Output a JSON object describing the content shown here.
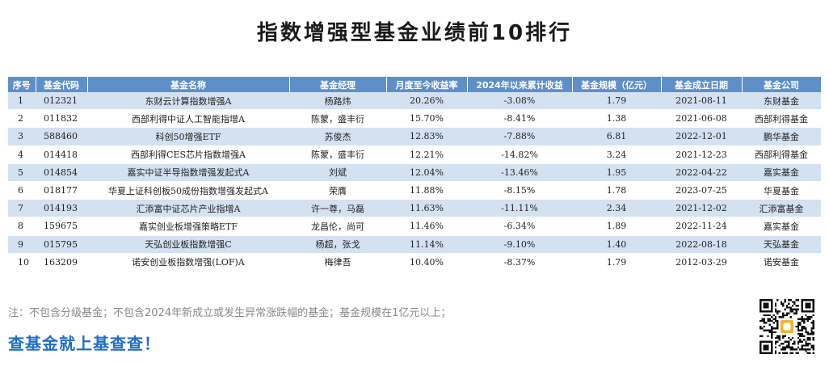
{
  "title": "指数增强型基金业绩前10排行",
  "table": {
    "headers": [
      "序号",
      "基金代码",
      "基金名称",
      "基金经理",
      "月度至今收益率",
      "2024年以来累计收益",
      "基金规模（亿元）",
      "基金成立日期",
      "基金公司"
    ],
    "rows": [
      [
        "1",
        "012321",
        "东财云计算指数增强A",
        "杨路炜",
        "20.26%",
        "-3.08%",
        "1.79",
        "2021-08-11",
        "东财基金"
      ],
      [
        "2",
        "011832",
        "西部利得中证人工智能指增A",
        "陈蒙，盛丰衍",
        "15.70%",
        "-8.41%",
        "1.38",
        "2021-06-08",
        "西部利得基金"
      ],
      [
        "3",
        "588460",
        "科创50增强ETF",
        "苏俊杰",
        "12.83%",
        "-7.88%",
        "6.81",
        "2022-12-01",
        "鹏华基金"
      ],
      [
        "4",
        "014418",
        "西部利得CES芯片指数增强A",
        "陈蒙，盛丰衍",
        "12.21%",
        "-14.82%",
        "3.24",
        "2021-12-23",
        "西部利得基金"
      ],
      [
        "5",
        "014854",
        "嘉实中证半导指数增强发起式A",
        "刘斌",
        "12.04%",
        "-13.46%",
        "1.95",
        "2022-04-22",
        "嘉实基金"
      ],
      [
        "6",
        "018177",
        "华夏上证科创板50成份指数增强发起式A",
        "荣膺",
        "11.88%",
        "-8.15%",
        "1.78",
        "2023-07-25",
        "华夏基金"
      ],
      [
        "7",
        "014193",
        "汇添富中证芯片产业指增A",
        "许一尊，马磊",
        "11.63%",
        "-11.11%",
        "2.34",
        "2021-12-02",
        "汇添富基金"
      ],
      [
        "8",
        "159675",
        "嘉实创业板增强策略ETF",
        "龙昌伦，尚可",
        "11.46%",
        "-6.34%",
        "1.89",
        "2022-11-24",
        "嘉实基金"
      ],
      [
        "9",
        "015795",
        "天弘创业板指数增强C",
        "杨超，张戈",
        "11.14%",
        "-9.10%",
        "1.40",
        "2022-08-18",
        "天弘基金"
      ],
      [
        "10",
        "163209",
        "诺安创业板指数增强(LOF)A",
        "梅律吾",
        "10.40%",
        "-8.37%",
        "1.79",
        "2012-03-29",
        "诺安基金"
      ]
    ]
  },
  "footer": {
    "note": "注：不包含分级基金；不包含2024年新成立或发生异常涨跌幅的基金；基金规模在1亿元以上；",
    "slogan": "查基金就上基查查！"
  },
  "colors": {
    "header_bg": "#5f8fc9",
    "row_alt_bg": "#d3e1f1",
    "slogan": "#1f6fc5"
  },
  "qr_icon": "qr-code-icon"
}
